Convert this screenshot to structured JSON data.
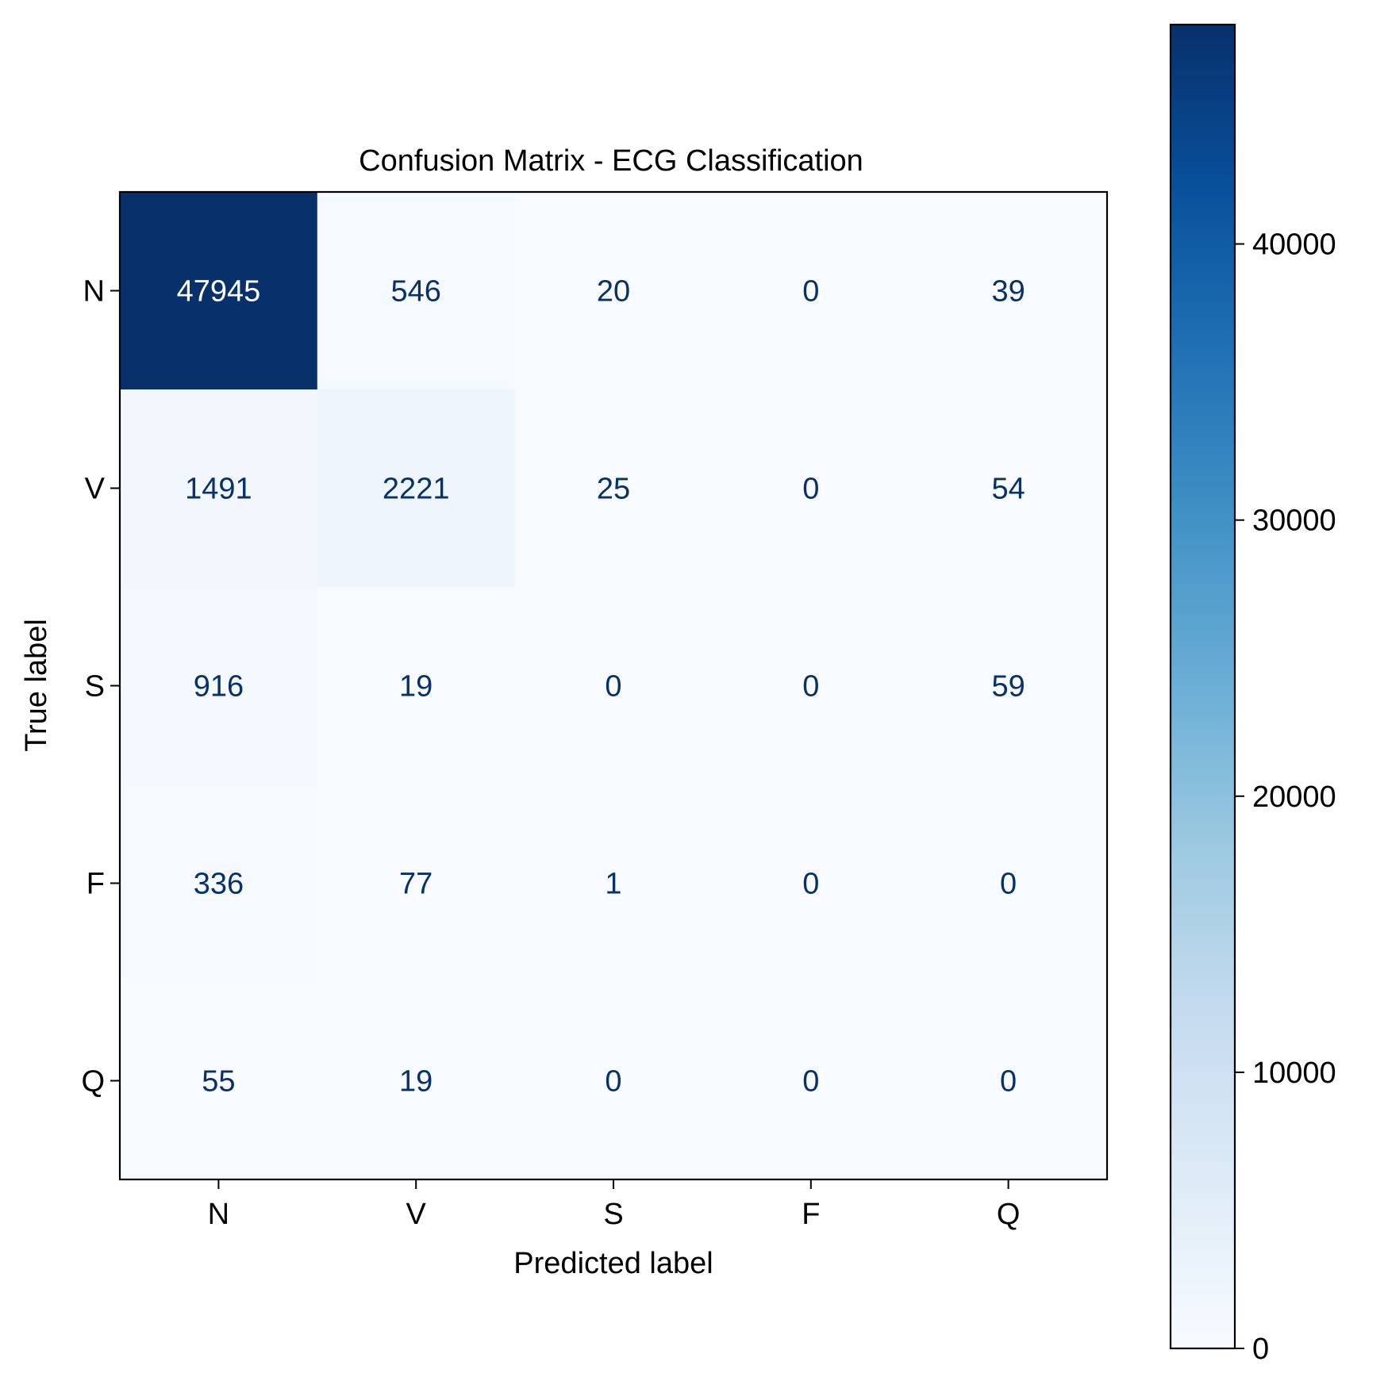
{
  "chart_data": {
    "type": "heatmap",
    "title": "Confusion Matrix - ECG Classification",
    "xlabel": "Predicted label",
    "ylabel": "True label",
    "x_categories": [
      "N",
      "V",
      "S",
      "F",
      "Q"
    ],
    "y_categories": [
      "N",
      "V",
      "S",
      "F",
      "Q"
    ],
    "values": [
      [
        47945,
        546,
        20,
        0,
        39
      ],
      [
        1491,
        2221,
        25,
        0,
        54
      ],
      [
        916,
        19,
        0,
        0,
        59
      ],
      [
        336,
        77,
        1,
        0,
        0
      ],
      [
        55,
        19,
        0,
        0,
        0
      ]
    ],
    "colormap": "Blues",
    "colorbar": {
      "min": 0,
      "max": 47945,
      "ticks": [
        0,
        10000,
        20000,
        30000,
        40000
      ],
      "tick_labels": [
        "0",
        "10000",
        "20000",
        "30000",
        "40000"
      ]
    },
    "colors": {
      "text_dark": "#08306b",
      "text_light": "#ffffff",
      "axis": "#000000"
    }
  }
}
